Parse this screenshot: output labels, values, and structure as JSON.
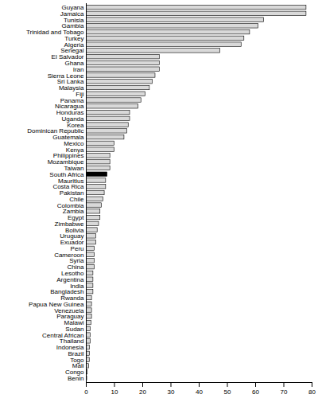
{
  "chart_data": {
    "type": "bar",
    "orientation": "horizontal",
    "categories": [
      "Guyana",
      "Jamaica",
      "Tunisia",
      "Gambia",
      "Trinidad and Tobago",
      "Turkey",
      "Algeria",
      "Senegal",
      "El Salvador",
      "Ghana",
      "Iran",
      "Sierra Leone",
      "Sri Lanka",
      "Malaysia",
      "Fiji",
      "Panama",
      "Nicaragua",
      "Honduras",
      "Uganda",
      "Korea",
      "Dominican Republic",
      "Guatemala",
      "Mexico",
      "Kenya",
      "Philippines",
      "Mozambique",
      "Taiwan",
      "South Africa",
      "Mauritius",
      "Costa Rica",
      "Pakistan",
      "Chile",
      "Colombia",
      "Zambia",
      "Egypt",
      "Zimbabwe",
      "Bolivia",
      "Uruguay",
      "Exuador",
      "Peru",
      "Cameroon",
      "Syria",
      "China",
      "Lesotho",
      "Argentina",
      "India",
      "Bangladesh",
      "Rwanda",
      "Papua New Guinea",
      "Venezuela",
      "Paraguay",
      "Malawi",
      "Sudan",
      "Central African",
      "Thailand",
      "Indonesia",
      "Brazil",
      "Togo",
      "Mali",
      "Congo",
      "Benin"
    ],
    "values": [
      78,
      78,
      63,
      61,
      58,
      56,
      55,
      47.5,
      26,
      26,
      26,
      24.5,
      23.5,
      22.5,
      21,
      19.5,
      18.5,
      15.5,
      15.5,
      15,
      14.5,
      13.5,
      10,
      10,
      8.5,
      8.5,
      8.5,
      7.5,
      7,
      7,
      6.5,
      6,
      5.5,
      5,
      5,
      4.5,
      4,
      3.5,
      3.5,
      3,
      3,
      3,
      3,
      2.5,
      2.5,
      2.5,
      2.5,
      2,
      2,
      2,
      2,
      1.8,
      1.5,
      1.5,
      1.5,
      1.3,
      1.3,
      1.2,
      1,
      0.5,
      0.3
    ],
    "colors": [
      "#d9d9d9",
      "#d9d9d9",
      "#d9d9d9",
      "#d9d9d9",
      "#d9d9d9",
      "#d9d9d9",
      "#d9d9d9",
      "#d9d9d9",
      "#d9d9d9",
      "#d9d9d9",
      "#d9d9d9",
      "#d9d9d9",
      "#d9d9d9",
      "#d9d9d9",
      "#d9d9d9",
      "#d9d9d9",
      "#d9d9d9",
      "#d9d9d9",
      "#d9d9d9",
      "#d9d9d9",
      "#d9d9d9",
      "#d9d9d9",
      "#d9d9d9",
      "#d9d9d9",
      "#d9d9d9",
      "#d9d9d9",
      "#d9d9d9",
      "#000000",
      "#d9d9d9",
      "#d9d9d9",
      "#d9d9d9",
      "#d9d9d9",
      "#d9d9d9",
      "#d9d9d9",
      "#d9d9d9",
      "#d9d9d9",
      "#d9d9d9",
      "#d9d9d9",
      "#d9d9d9",
      "#d9d9d9",
      "#d9d9d9",
      "#d9d9d9",
      "#d9d9d9",
      "#d9d9d9",
      "#d9d9d9",
      "#d9d9d9",
      "#d9d9d9",
      "#d9d9d9",
      "#d9d9d9",
      "#d9d9d9",
      "#d9d9d9",
      "#d9d9d9",
      "#d9d9d9",
      "#d9d9d9",
      "#d9d9d9",
      "#d9d9d9",
      "#d9d9d9",
      "#d9d9d9",
      "#d9d9d9",
      "#d9d9d9",
      "#d9d9d9"
    ],
    "xlim": [
      0,
      80
    ],
    "xticks": [
      0,
      10,
      20,
      30,
      40,
      50,
      60,
      70,
      80
    ],
    "grid": false
  }
}
